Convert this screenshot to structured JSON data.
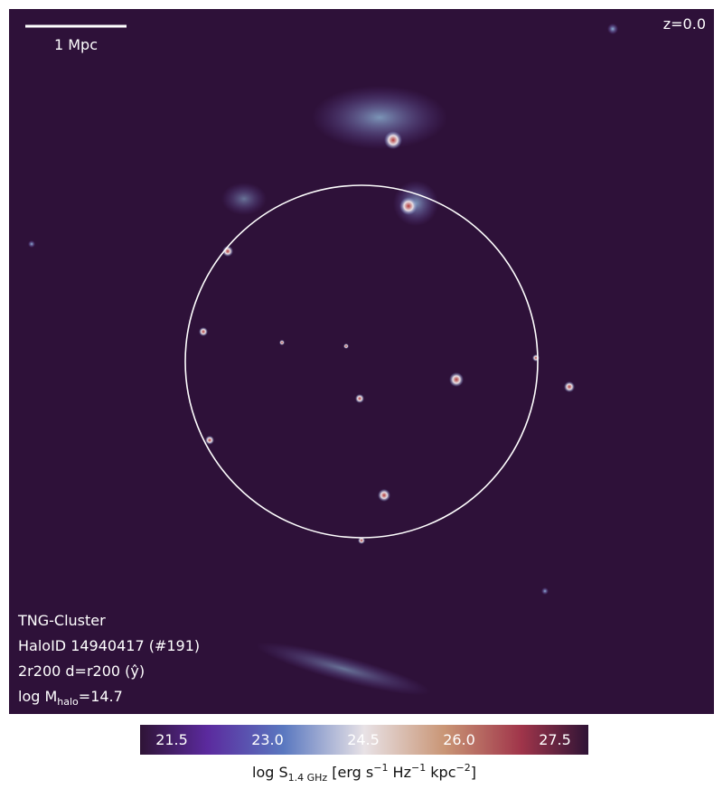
{
  "map": {
    "scale_bar": "1 Mpc",
    "redshift": "z=0.0",
    "info": {
      "sim": "TNG-Cluster",
      "halo": "HaloID 14940417 (#191)",
      "proj": "2r200 d=r200 (ŷ)",
      "mass": {
        "prefix": "log M",
        "sub": "halo",
        "suffix": "=14.7"
      }
    }
  },
  "colorbar": {
    "ticks": [
      "21.5",
      "23.0",
      "24.5",
      "26.0",
      "27.5"
    ],
    "label": {
      "prefix": "log S",
      "sub": "1.4 GHz",
      "p1": " [erg s",
      "e1": "−1",
      "p2": " Hz",
      "e2": "−1",
      "p3": " kpc",
      "e3": "−2",
      "p4": "]"
    }
  }
}
